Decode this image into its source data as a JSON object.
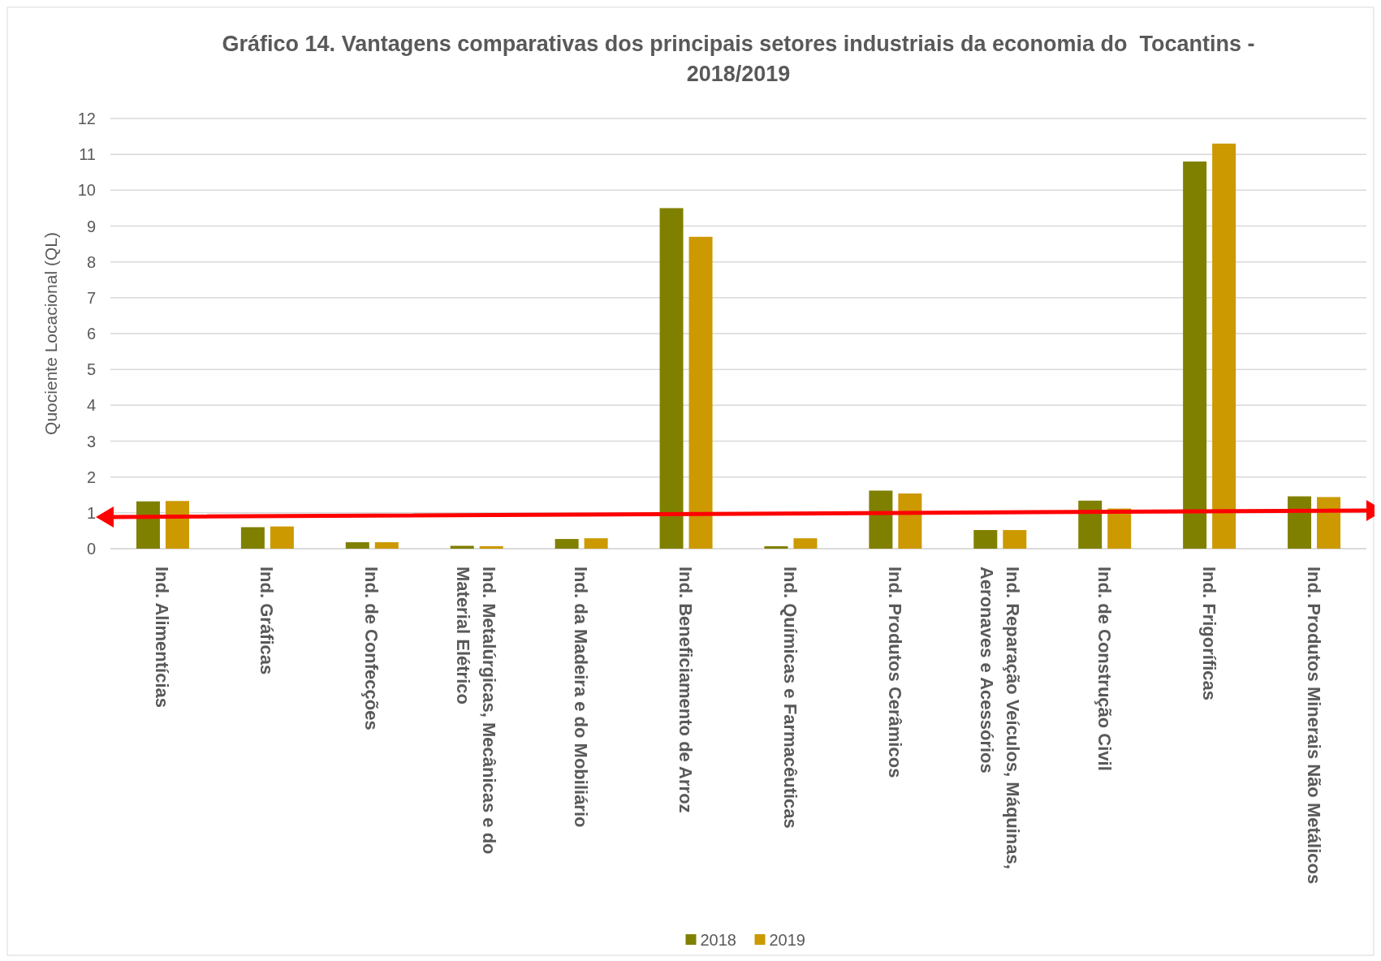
{
  "chart_data": {
    "type": "bar",
    "title": "Gráfico 14. Vantagens comparativas dos principais setores industriais da economia do  Tocantins - 2018/2019",
    "ylabel": "Quociente Locacional (QL)",
    "categories": [
      "Ind. Alimentícias",
      "Ind. Gráficas",
      "Ind. de Confecções",
      "Ind. Metalúrgicas, Mecânicas e do Material Elétrico",
      "Ind. da Madeira e do Mobiliário",
      "Ind. Beneficiamento de Arroz",
      "Ind. Químicas e Farmacêuticas",
      "Ind. Produtos Cerâmicos",
      "Ind. Reparação Veículos, Máquinas, Aeronaves e Acessórios",
      "Ind. de Construção Civil",
      "Ind. Frigoríficas",
      "Ind. Produtos Minerais Não Metálicos"
    ],
    "series": [
      {
        "name": "2018",
        "color": "#808000",
        "values": [
          1.32,
          0.6,
          0.18,
          0.08,
          0.27,
          9.5,
          0.07,
          1.62,
          0.52,
          1.34,
          10.8,
          1.46
        ]
      },
      {
        "name": "2019",
        "color": "#cc9900",
        "values": [
          1.33,
          0.62,
          0.18,
          0.07,
          0.29,
          8.7,
          0.29,
          1.54,
          0.52,
          1.12,
          11.3,
          1.44
        ]
      }
    ],
    "ylim": [
      0,
      12
    ],
    "yticks": [
      0,
      1,
      2,
      3,
      4,
      5,
      6,
      7,
      8,
      9,
      10,
      11,
      12
    ],
    "grid": "y",
    "legend": "bottom"
  }
}
